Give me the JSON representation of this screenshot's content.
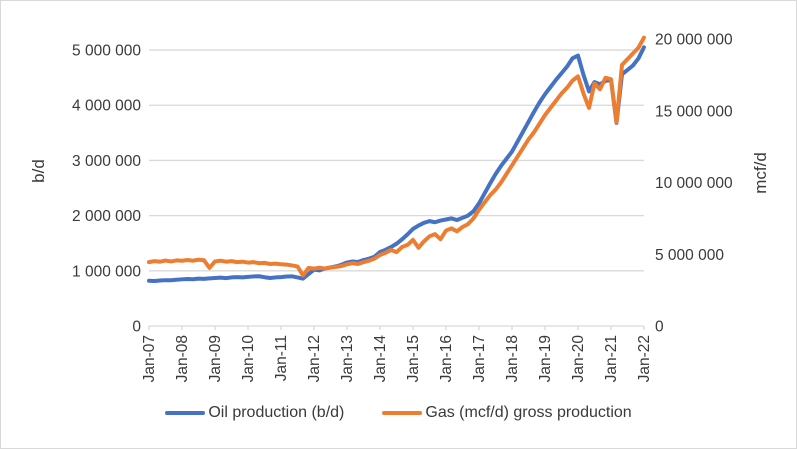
{
  "chart_data": {
    "type": "line",
    "title": "",
    "grid": true,
    "legend_position": "bottom",
    "x_axis": {
      "tick_labels": [
        "Jan-07",
        "Jan-08",
        "Jan-09",
        "Jan-10",
        "Jan-11",
        "Jan-12",
        "Jan-13",
        "Jan-14",
        "Jan-15",
        "Jan-16",
        "Jan-17",
        "Jan-18",
        "Jan-19",
        "Jan-20",
        "Jan-21",
        "Jan-22"
      ],
      "months_between_ticks": 12
    },
    "left_axis": {
      "title": "b/d",
      "max_value": 5200000,
      "ticks": [
        {
          "value": 0,
          "label": "0"
        },
        {
          "value": 1000000,
          "label": "1 000 000"
        },
        {
          "value": 2000000,
          "label": "2 000 000"
        },
        {
          "value": 3000000,
          "label": "3 000 000"
        },
        {
          "value": 4000000,
          "label": "4 000 000"
        },
        {
          "value": 5000000,
          "label": "5 000 000"
        }
      ]
    },
    "right_axis": {
      "title": "mcf/d",
      "max_value": 20000000,
      "ticks": [
        {
          "value": 0,
          "label": "0"
        },
        {
          "value": 5000000,
          "label": "5 000 000"
        },
        {
          "value": 10000000,
          "label": "10 000 000"
        },
        {
          "value": 15000000,
          "label": "15 000 000"
        },
        {
          "value": 20000000,
          "label": "20 000 000"
        }
      ]
    },
    "x_point_labels": [
      "Jan-07",
      "Mar-07",
      "May-07",
      "Jul-07",
      "Sep-07",
      "Nov-07",
      "Jan-08",
      "Mar-08",
      "May-08",
      "Jul-08",
      "Sep-08",
      "Nov-08",
      "Jan-09",
      "Mar-09",
      "May-09",
      "Jul-09",
      "Sep-09",
      "Nov-09",
      "Jan-10",
      "Mar-10",
      "May-10",
      "Jul-10",
      "Sep-10",
      "Nov-10",
      "Jan-11",
      "Mar-11",
      "May-11",
      "Jul-11",
      "Sep-11",
      "Nov-11",
      "Jan-12",
      "Mar-12",
      "May-12",
      "Jul-12",
      "Sep-12",
      "Nov-12",
      "Jan-13",
      "Mar-13",
      "May-13",
      "Jul-13",
      "Sep-13",
      "Nov-13",
      "Jan-14",
      "Mar-14",
      "May-14",
      "Jul-14",
      "Sep-14",
      "Nov-14",
      "Jan-15",
      "Mar-15",
      "May-15",
      "Jul-15",
      "Sep-15",
      "Nov-15",
      "Jan-16",
      "Mar-16",
      "May-16",
      "Jul-16",
      "Sep-16",
      "Nov-16",
      "Jan-17",
      "Mar-17",
      "May-17",
      "Jul-17",
      "Sep-17",
      "Nov-17",
      "Jan-18",
      "Mar-18",
      "May-18",
      "Jul-18",
      "Sep-18",
      "Nov-18",
      "Jan-19",
      "Mar-19",
      "May-19",
      "Jul-19",
      "Sep-19",
      "Nov-19",
      "Jan-20",
      "Mar-20",
      "May-20",
      "Jul-20",
      "Sep-20",
      "Nov-20",
      "Jan-21",
      "Mar-21",
      "May-21",
      "Jul-21",
      "Sep-21",
      "Nov-21",
      "Jan-22"
    ],
    "series": [
      {
        "name": "Oil production (b/d)",
        "axis": "left",
        "color": "#4472C4",
        "values": [
          820000,
          815000,
          824000,
          830000,
          828000,
          838000,
          846000,
          852000,
          848000,
          858000,
          854000,
          862000,
          870000,
          876000,
          868000,
          880000,
          886000,
          882000,
          890000,
          898000,
          902000,
          884000,
          870000,
          880000,
          886000,
          896000,
          900000,
          880000,
          858000,
          940000,
          1020000,
          1008000,
          1042000,
          1060000,
          1080000,
          1110000,
          1150000,
          1170000,
          1160000,
          1195000,
          1220000,
          1255000,
          1340000,
          1380000,
          1430000,
          1490000,
          1570000,
          1660000,
          1760000,
          1820000,
          1870000,
          1900000,
          1880000,
          1910000,
          1930000,
          1950000,
          1920000,
          1960000,
          2000000,
          2080000,
          2220000,
          2400000,
          2580000,
          2750000,
          2900000,
          3030000,
          3160000,
          3340000,
          3520000,
          3700000,
          3880000,
          4050000,
          4200000,
          4330000,
          4460000,
          4580000,
          4700000,
          4850000,
          4900000,
          4550000,
          4250000,
          4420000,
          4380000,
          4440000,
          4460000,
          3680000,
          4560000,
          4640000,
          4720000,
          4850000,
          5050000
        ]
      },
      {
        "name": "Gas (mcf/d) gross production",
        "axis": "right",
        "color": "#ED7D31",
        "values": [
          4450000,
          4520000,
          4480000,
          4560000,
          4500000,
          4570000,
          4550000,
          4600000,
          4550000,
          4620000,
          4580000,
          4050000,
          4500000,
          4550000,
          4480000,
          4520000,
          4450000,
          4480000,
          4420000,
          4450000,
          4380000,
          4400000,
          4320000,
          4350000,
          4300000,
          4280000,
          4220000,
          4150000,
          3520000,
          4050000,
          4000000,
          4060000,
          4000000,
          4080000,
          4120000,
          4180000,
          4300000,
          4380000,
          4320000,
          4450000,
          4550000,
          4700000,
          4950000,
          5100000,
          5300000,
          5150000,
          5500000,
          5650000,
          6000000,
          5450000,
          5900000,
          6250000,
          6400000,
          6050000,
          6650000,
          6800000,
          6600000,
          6900000,
          7100000,
          7500000,
          8100000,
          8600000,
          9100000,
          9500000,
          10000000,
          10600000,
          11200000,
          11800000,
          12400000,
          13000000,
          13500000,
          14100000,
          14700000,
          15200000,
          15700000,
          16200000,
          16600000,
          17100000,
          17400000,
          16200000,
          15200000,
          16900000,
          16500000,
          17300000,
          17200000,
          14200000,
          18200000,
          18600000,
          19000000,
          19400000,
          20100000
        ]
      }
    ],
    "legend_entries": [
      "Oil production (b/d)",
      "Gas (mcf/d) gross production"
    ]
  },
  "colors": {
    "oil_line": "#4472C4",
    "gas_line": "#ED7D31",
    "gridline": "#D9D9D9",
    "axis_text": "#3a3a3a"
  }
}
